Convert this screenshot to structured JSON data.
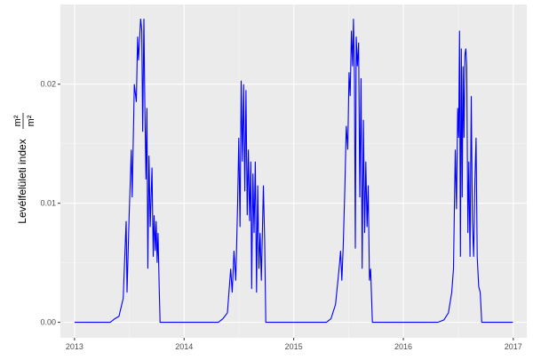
{
  "chart_data": {
    "type": "line",
    "title": "",
    "xlabel": "",
    "ylabel": "Levélfelületi index",
    "ylabel_unit_num": "m²",
    "ylabel_unit_den": "m²",
    "xlim": [
      "2012-11-15",
      "2017-02-15"
    ],
    "ylim": [
      -0.0013,
      0.0267
    ],
    "x_ticks": [
      "2013",
      "2014",
      "2015",
      "2016",
      "2017"
    ],
    "y_ticks": [
      "0.00",
      "0.01",
      "0.02"
    ],
    "y_tick_values": [
      0,
      0.01,
      0.02
    ],
    "grid": true,
    "colors": {
      "line": "#0000ff",
      "panel": "#ebebeb",
      "grid": "#ffffff"
    },
    "points": [
      [
        "2013-01-01",
        0
      ],
      [
        "2013-04-30",
        0
      ],
      [
        "2013-05-15",
        0.0003
      ],
      [
        "2013-05-29",
        0.0005
      ],
      [
        "2013-06-12",
        0.002
      ],
      [
        "2013-06-18",
        0.006
      ],
      [
        "2013-06-22",
        0.0085
      ],
      [
        "2013-06-25",
        0.0025
      ],
      [
        "2013-07-02",
        0.009
      ],
      [
        "2013-07-09",
        0.0145
      ],
      [
        "2013-07-12",
        0.0105
      ],
      [
        "2013-07-19",
        0.02
      ],
      [
        "2013-07-26",
        0.0185
      ],
      [
        "2013-07-30",
        0.024
      ],
      [
        "2013-08-02",
        0.022
      ],
      [
        "2013-08-09",
        0.0255
      ],
      [
        "2013-08-13",
        0.0245
      ],
      [
        "2013-08-16",
        0.016
      ],
      [
        "2013-08-20",
        0.0255
      ],
      [
        "2013-08-23",
        0.0185
      ],
      [
        "2013-08-27",
        0.012
      ],
      [
        "2013-08-30",
        0.018
      ],
      [
        "2013-09-02",
        0.0045
      ],
      [
        "2013-09-06",
        0.014
      ],
      [
        "2013-09-10",
        0.008
      ],
      [
        "2013-09-16",
        0.013
      ],
      [
        "2013-09-20",
        0.0055
      ],
      [
        "2013-09-23",
        0.009
      ],
      [
        "2013-09-27",
        0.006
      ],
      [
        "2013-09-30",
        0.0085
      ],
      [
        "2013-10-03",
        0.005
      ],
      [
        "2013-10-06",
        0.0075
      ],
      [
        "2013-10-10",
        0.003
      ],
      [
        "2013-10-13",
        0
      ],
      [
        "2014-04-25",
        0
      ],
      [
        "2014-05-10",
        0.0003
      ],
      [
        "2014-05-25",
        0.0008
      ],
      [
        "2014-06-05",
        0.0045
      ],
      [
        "2014-06-10",
        0.0025
      ],
      [
        "2014-06-16",
        0.006
      ],
      [
        "2014-06-22",
        0.0035
      ],
      [
        "2014-06-28",
        0.01
      ],
      [
        "2014-07-02",
        0.0155
      ],
      [
        "2014-07-06",
        0.008
      ],
      [
        "2014-07-10",
        0.0203
      ],
      [
        "2014-07-14",
        0.0135
      ],
      [
        "2014-07-18",
        0.02
      ],
      [
        "2014-07-22",
        0.011
      ],
      [
        "2014-07-26",
        0.0195
      ],
      [
        "2014-07-30",
        0.009
      ],
      [
        "2014-08-03",
        0.0145
      ],
      [
        "2014-08-07",
        0.0085
      ],
      [
        "2014-08-11",
        0.0135
      ],
      [
        "2014-08-14",
        0.0028
      ],
      [
        "2014-08-18",
        0.0125
      ],
      [
        "2014-08-22",
        0.0075
      ],
      [
        "2014-08-26",
        0.0135
      ],
      [
        "2014-08-30",
        0.0025
      ],
      [
        "2014-09-03",
        0.0115
      ],
      [
        "2014-09-07",
        0.0045
      ],
      [
        "2014-09-11",
        0.0075
      ],
      [
        "2014-09-15",
        0.0035
      ],
      [
        "2014-09-22",
        0.0115
      ],
      [
        "2014-09-26",
        0.007
      ],
      [
        "2014-09-30",
        0
      ],
      [
        "2015-04-20",
        0
      ],
      [
        "2015-05-05",
        0.0003
      ],
      [
        "2015-05-20",
        0.0015
      ],
      [
        "2015-06-01",
        0.0045
      ],
      [
        "2015-06-06",
        0.006
      ],
      [
        "2015-06-10",
        0.0035
      ],
      [
        "2015-06-15",
        0.0065
      ],
      [
        "2015-06-20",
        0.011
      ],
      [
        "2015-06-25",
        0.0165
      ],
      [
        "2015-06-30",
        0.0145
      ],
      [
        "2015-07-04",
        0.021
      ],
      [
        "2015-07-08",
        0.019
      ],
      [
        "2015-07-12",
        0.0245
      ],
      [
        "2015-07-16",
        0.0215
      ],
      [
        "2015-07-19",
        0.0255
      ],
      [
        "2015-07-22",
        0.0205
      ],
      [
        "2015-07-25",
        0.0062
      ],
      [
        "2015-07-28",
        0.024
      ],
      [
        "2015-08-01",
        0.0215
      ],
      [
        "2015-08-05",
        0.0235
      ],
      [
        "2015-08-09",
        0.0105
      ],
      [
        "2015-08-13",
        0.0205
      ],
      [
        "2015-08-17",
        0.0045
      ],
      [
        "2015-08-21",
        0.017
      ],
      [
        "2015-08-25",
        0.0075
      ],
      [
        "2015-08-29",
        0.0135
      ],
      [
        "2015-09-02",
        0.008
      ],
      [
        "2015-09-06",
        0.0115
      ],
      [
        "2015-09-10",
        0.0035
      ],
      [
        "2015-09-14",
        0.0045
      ],
      [
        "2015-09-20",
        0
      ],
      [
        "2016-04-25",
        0
      ],
      [
        "2016-05-15",
        0.0002
      ],
      [
        "2016-05-30",
        0.0008
      ],
      [
        "2016-06-10",
        0.0025
      ],
      [
        "2016-06-16",
        0.0045
      ],
      [
        "2016-06-22",
        0.0145
      ],
      [
        "2016-06-26",
        0.0095
      ],
      [
        "2016-06-30",
        0.018
      ],
      [
        "2016-07-03",
        0.0155
      ],
      [
        "2016-07-06",
        0.0245
      ],
      [
        "2016-07-09",
        0.0055
      ],
      [
        "2016-07-12",
        0.023
      ],
      [
        "2016-07-15",
        0.0105
      ],
      [
        "2016-07-18",
        0.0215
      ],
      [
        "2016-07-21",
        0.0155
      ],
      [
        "2016-07-24",
        0.0225
      ],
      [
        "2016-07-27",
        0.023
      ],
      [
        "2016-07-30",
        0.0215
      ],
      [
        "2016-08-03",
        0.0075
      ],
      [
        "2016-08-06",
        0.0135
      ],
      [
        "2016-08-10",
        0.0055
      ],
      [
        "2016-08-14",
        0.019
      ],
      [
        "2016-08-18",
        0.0085
      ],
      [
        "2016-08-22",
        0.0055
      ],
      [
        "2016-08-26",
        0.0115
      ],
      [
        "2016-08-30",
        0.0155
      ],
      [
        "2016-09-03",
        0.0055
      ],
      [
        "2016-09-08",
        0.003
      ],
      [
        "2016-09-13",
        0.0025
      ],
      [
        "2016-09-18",
        0
      ],
      [
        "2016-12-31",
        0
      ]
    ]
  }
}
